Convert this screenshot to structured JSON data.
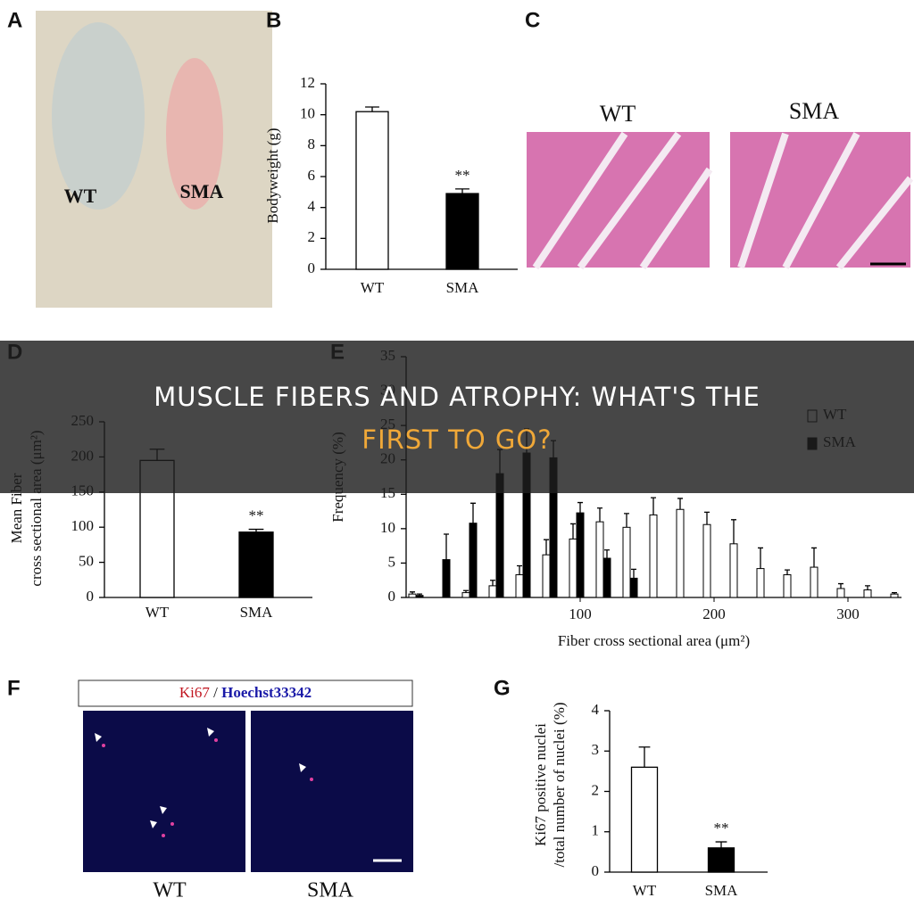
{
  "banner": {
    "lines": [
      "MUSCLE FIBERS AND ATROPHY: WHAT'S THE",
      "FIRST TO GO?"
    ]
  },
  "panels": {
    "a": {
      "label": "A",
      "photo_labels": [
        "WT",
        "SMA"
      ]
    },
    "b": {
      "label": "B"
    },
    "c": {
      "label": "C",
      "image_labels": [
        "WT",
        "SMA"
      ]
    },
    "d": {
      "label": "D"
    },
    "e": {
      "label": "E"
    },
    "f": {
      "label": "F",
      "stain_labels": [
        "Ki67",
        "/",
        "Hoechst33342"
      ],
      "image_labels": [
        "WT",
        "SMA"
      ]
    },
    "g": {
      "label": "G"
    }
  },
  "chart_data": [
    {
      "type": "bar",
      "ylabel": "Bodyweight (g)",
      "categories": [
        "WT",
        "SMA"
      ],
      "values": [
        10.2,
        4.9
      ],
      "errors": [
        0.3,
        0.3
      ],
      "colors": [
        "#ffffff",
        "#000000"
      ],
      "annotations": [
        {
          "text": "**",
          "category": "SMA"
        }
      ],
      "ylim": [
        0,
        12
      ],
      "yticks": [
        0,
        2,
        4,
        6,
        8,
        10,
        12
      ]
    },
    {
      "type": "bar",
      "ylabel": [
        "Mean Fiber",
        "cross sectional area (μm²)"
      ],
      "categories": [
        "WT",
        "SMA"
      ],
      "values": [
        195,
        93
      ],
      "errors": [
        16,
        4
      ],
      "colors": [
        "#ffffff",
        "#000000"
      ],
      "annotations": [
        {
          "text": "**",
          "category": "SMA"
        }
      ],
      "ylim": [
        0,
        250
      ],
      "yticks": [
        0,
        50,
        100,
        150,
        200,
        250
      ]
    },
    {
      "type": "bar",
      "ylabel": "Frequency (%)",
      "xlabel": "Fiber cross sectional area (μm²)",
      "legend": "upper right",
      "x": [
        -20,
        0,
        20,
        40,
        60,
        80,
        100,
        120,
        140,
        160,
        180,
        200,
        220,
        240,
        260,
        280,
        300,
        320,
        340
      ],
      "series": [
        {
          "name": "WT",
          "color": "#ffffff",
          "values": [
            0.5,
            null,
            0.7,
            1.7,
            3.3,
            6.2,
            8.5,
            11,
            10.2,
            12,
            12.8,
            10.6,
            7.8,
            4.2,
            3.3,
            4.4,
            1.3,
            1.1,
            0.5
          ],
          "errors": [
            0.3,
            null,
            0.3,
            0.8,
            1.3,
            2.2,
            2.2,
            2,
            2,
            2.5,
            1.6,
            1.8,
            3.5,
            3,
            0.7,
            2.8,
            0.7,
            0.6,
            0.2
          ]
        },
        {
          "name": "SMA",
          "color": "#000000",
          "values": [
            0.3,
            5.5,
            10.8,
            18,
            21,
            20.3,
            12.3,
            5.7,
            2.8,
            null,
            null,
            null,
            null,
            null,
            null,
            null,
            null,
            null,
            null
          ],
          "errors": [
            0.2,
            3.7,
            2.9,
            3.5,
            3.5,
            2.5,
            1.5,
            1.2,
            1.3,
            null,
            null,
            null,
            null,
            null,
            null,
            null,
            null,
            null,
            null
          ]
        }
      ],
      "xlim": [
        -30,
        340
      ],
      "xticks": [
        100,
        200,
        300
      ],
      "ylim": [
        0,
        35
      ],
      "yticks": [
        0,
        5,
        10,
        15,
        20,
        25,
        30,
        35
      ]
    },
    {
      "type": "bar",
      "ylabel": [
        "Ki67 positive nuclei",
        "/total number of nuclei (%)"
      ],
      "categories": [
        "WT",
        "SMA"
      ],
      "values": [
        2.6,
        0.6
      ],
      "errors": [
        0.5,
        0.15
      ],
      "colors": [
        "#ffffff",
        "#000000"
      ],
      "annotations": [
        {
          "text": "**",
          "category": "SMA"
        }
      ],
      "ylim": [
        0,
        4
      ],
      "yticks": [
        0,
        1,
        2,
        3,
        4
      ]
    }
  ]
}
